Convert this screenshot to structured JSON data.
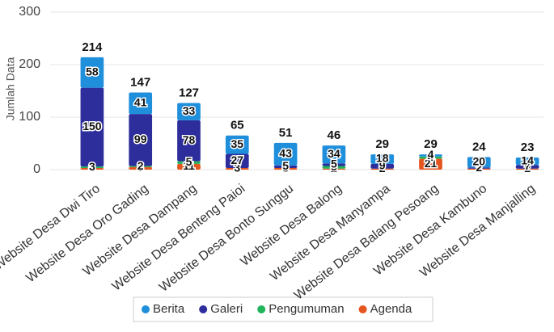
{
  "chart_data": {
    "type": "stacked-bar",
    "y_label": "Jumlah Data",
    "categories": [
      "Website Desa Dwi Tiro",
      "Website Desa Oro Gading",
      "Website Desa Dampang",
      "Website Desa Benteng Paioi",
      "Website Desa Bonto Sunggu",
      "Website Desa Balong",
      "Website Desa Manyampa",
      "Website Desa Balang Pesoang",
      "Website Desa Kambuno",
      "Website Desa Manjalling"
    ],
    "series": [
      {
        "name": "Agenda",
        "color": "#e4561f",
        "values": [
          3,
          5,
          11,
          3,
          3,
          2,
          2,
          21,
          2,
          2
        ]
      },
      {
        "name": "Pengumuman",
        "color": "#22b45a",
        "values": [
          3,
          2,
          5,
          0,
          0,
          5,
          0,
          4,
          0,
          0
        ]
      },
      {
        "name": "Galeri",
        "color": "#2d2e9c",
        "values": [
          150,
          99,
          78,
          27,
          5,
          5,
          9,
          0,
          2,
          7
        ]
      },
      {
        "name": "Berita",
        "color": "#1f8fdc",
        "values": [
          58,
          41,
          33,
          35,
          43,
          34,
          18,
          4,
          20,
          14
        ]
      }
    ],
    "legend_order": [
      3,
      2,
      1,
      0
    ],
    "totals": [
      214,
      147,
      127,
      65,
      51,
      46,
      29,
      29,
      24,
      23
    ],
    "ylim": [
      0,
      300
    ],
    "yticks": [
      0,
      100,
      200,
      300
    ],
    "grid": true
  }
}
